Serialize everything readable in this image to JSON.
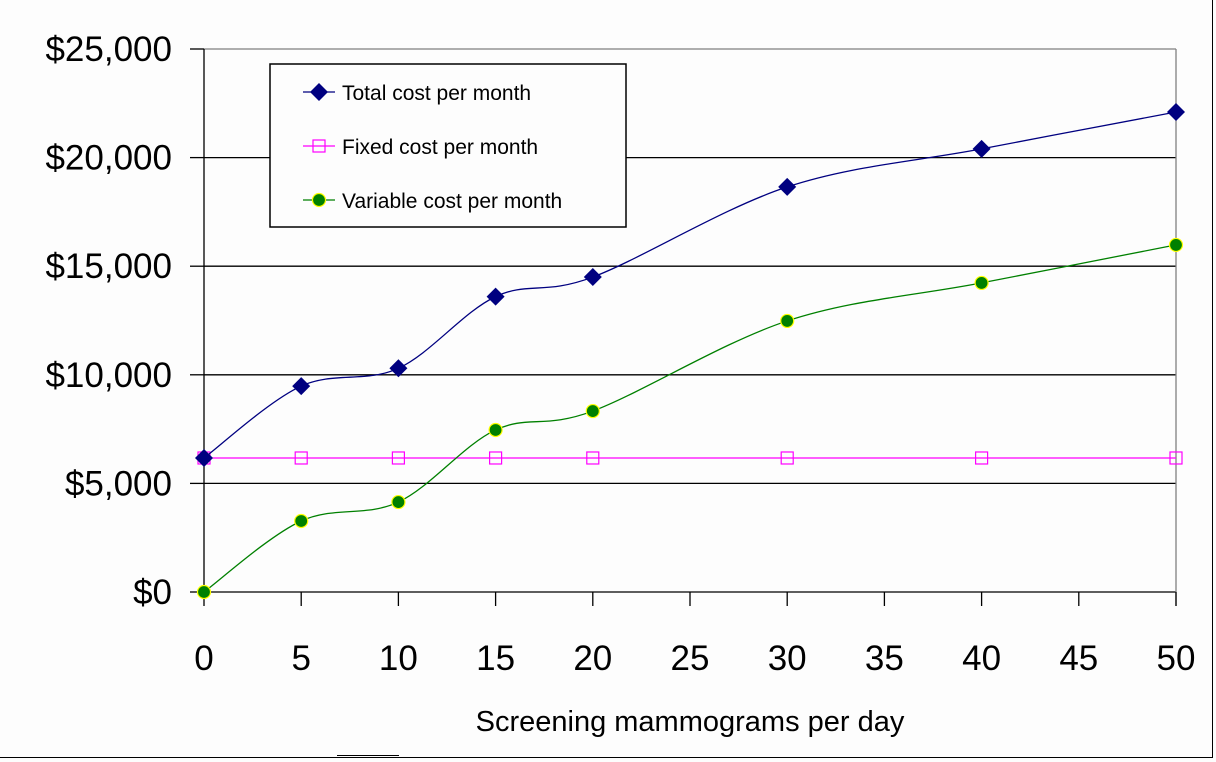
{
  "chart_data": {
    "type": "line",
    "title": "",
    "xlabel": "Screening mammograms per day",
    "ylabel": "",
    "xlim": [
      0,
      50
    ],
    "ylim": [
      0,
      25000
    ],
    "x_ticks": [
      0,
      5,
      10,
      15,
      20,
      25,
      30,
      35,
      40,
      45,
      50
    ],
    "x_tick_labels": [
      "0",
      "5",
      "10",
      "15",
      "20",
      "25",
      "30",
      "35",
      "40",
      "45",
      "50"
    ],
    "y_ticks": [
      0,
      5000,
      10000,
      15000,
      20000,
      25000
    ],
    "y_tick_labels": [
      "$0",
      "$5,000",
      "$10,000",
      "$15,000",
      "$20,000",
      "$25,000"
    ],
    "grid": "horizontal",
    "smoothed": true,
    "legend_position": "top-left",
    "x": [
      0,
      5,
      10,
      15,
      20,
      30,
      40,
      50
    ],
    "series": [
      {
        "name": "Total cost per month",
        "color": "#000080",
        "marker": "diamond",
        "values": [
          6170,
          9480,
          10300,
          13600,
          14500,
          18650,
          20400,
          22100
        ]
      },
      {
        "name": "Fixed cost per month",
        "color": "#ff00ff",
        "marker": "square-open",
        "values": [
          6170,
          6170,
          6170,
          6170,
          6170,
          6170,
          6170,
          6170
        ]
      },
      {
        "name": "Variable cost per month",
        "color": "#008000",
        "marker_edge": "#ffff00",
        "marker": "circle",
        "values": [
          0,
          3270,
          4140,
          7460,
          8330,
          12480,
          14230,
          15980
        ]
      }
    ]
  }
}
